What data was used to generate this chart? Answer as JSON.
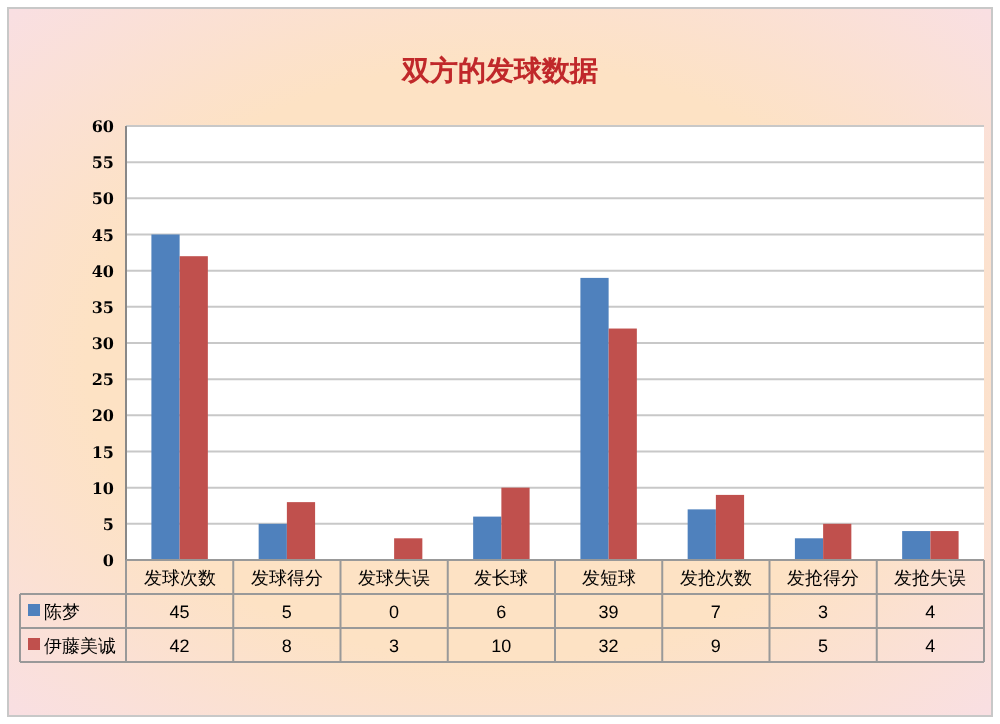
{
  "chart_data": {
    "type": "bar",
    "title": "双方的发球数据",
    "categories": [
      "发球次数",
      "发球得分",
      "发球失误",
      "发长球",
      "发短球",
      "发抢次数",
      "发抢得分",
      "发抢失误"
    ],
    "series": [
      {
        "name": "陈梦",
        "color": "#4f81bd",
        "values": [
          45,
          5,
          0,
          6,
          39,
          7,
          3,
          4
        ]
      },
      {
        "name": "伊藤美诚",
        "color": "#c0504d",
        "values": [
          42,
          8,
          3,
          10,
          32,
          9,
          5,
          4
        ]
      }
    ],
    "ylim": [
      0,
      60
    ],
    "yticks": [
      0,
      5,
      10,
      15,
      20,
      25,
      30,
      35,
      40,
      45,
      50,
      55,
      60
    ],
    "grid": "y",
    "data_labels": true,
    "legend": "bottom"
  }
}
